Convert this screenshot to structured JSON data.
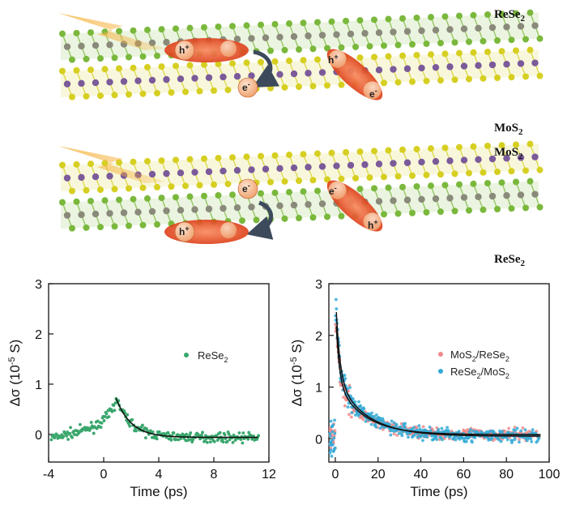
{
  "schematic": {
    "top": {
      "upper_label": "ReSe",
      "upper_sub": "2",
      "lower_label": "MoS",
      "lower_sub": "2",
      "upper_color": "#7ab83c",
      "lower_color": "#d6cf22"
    },
    "bottom": {
      "upper_label": "MoS",
      "upper_sub": "2",
      "lower_label": "ReSe",
      "lower_sub": "2",
      "upper_color": "#d6cf22",
      "lower_color": "#7ab83c"
    },
    "carriers": {
      "hole": "h",
      "hole_sup": "+",
      "electron": "e",
      "electron_sup": "-"
    },
    "colors": {
      "exciton": "#e8471f",
      "carrier_ball": "#f6c29a",
      "lightning": "#f5b43a",
      "arrow": "#3d4a5c",
      "re_atom": "#8a8a7a",
      "mo_atom": "#7b5a9a"
    }
  },
  "chart_data": [
    {
      "type": "scatter",
      "xlabel": "Time (ps)",
      "ylabel_prefix": "Δσ (10",
      "ylabel_exp": "-5",
      "ylabel_suffix": " S)",
      "xlim": [
        -4,
        12
      ],
      "ylim": [
        -0.55,
        3
      ],
      "xticks": [
        "-4",
        "0",
        "4",
        "8",
        "12"
      ],
      "yticks": [
        "0",
        "1",
        "2",
        "3"
      ],
      "legend_position": "upper-right",
      "series": [
        {
          "name": "ReSe",
          "name_sub": "2",
          "color": "#3aa76d",
          "noise": 0.09,
          "model": {
            "rise_start": -3.5,
            "peak_time": 0.9,
            "peak_value": 0.72,
            "decay_tau": 1.1,
            "baseline": -0.06
          },
          "fit": {
            "x_start": 0.9,
            "x_end": 11.2,
            "amplitude": 0.78,
            "tau": 1.1,
            "offset": -0.06
          }
        }
      ]
    },
    {
      "type": "scatter",
      "xlabel": "Time (ps)",
      "ylabel_prefix": "Δσ (10",
      "ylabel_exp": "-5",
      "ylabel_suffix": " S)",
      "xlim": [
        -3,
        100
      ],
      "ylim": [
        -0.45,
        3
      ],
      "xticks": [
        "0",
        "20",
        "40",
        "60",
        "80",
        "100"
      ],
      "yticks": [
        "0",
        "1",
        "2",
        "3"
      ],
      "legend_position": "right",
      "series": [
        {
          "name_main": "MoS",
          "name_sub1": "2",
          "name_mid": "/ReSe",
          "name_sub2": "2",
          "color": "#f08a8a",
          "noise": 0.1,
          "model": {
            "peak_time": 0.5,
            "a1": 1.1,
            "tau1": 1.5,
            "a2": 1.0,
            "tau2": 13,
            "offset": 0.08
          }
        },
        {
          "name_main": "ReSe",
          "name_sub1": "2",
          "name_mid": "/MoS",
          "name_sub2": "2",
          "color": "#33aad6",
          "noise": 0.13,
          "model": {
            "peak_time": 0.5,
            "a1": 1.3,
            "tau1": 1.8,
            "a2": 1.1,
            "tau2": 14,
            "offset": 0.05
          }
        }
      ]
    }
  ]
}
